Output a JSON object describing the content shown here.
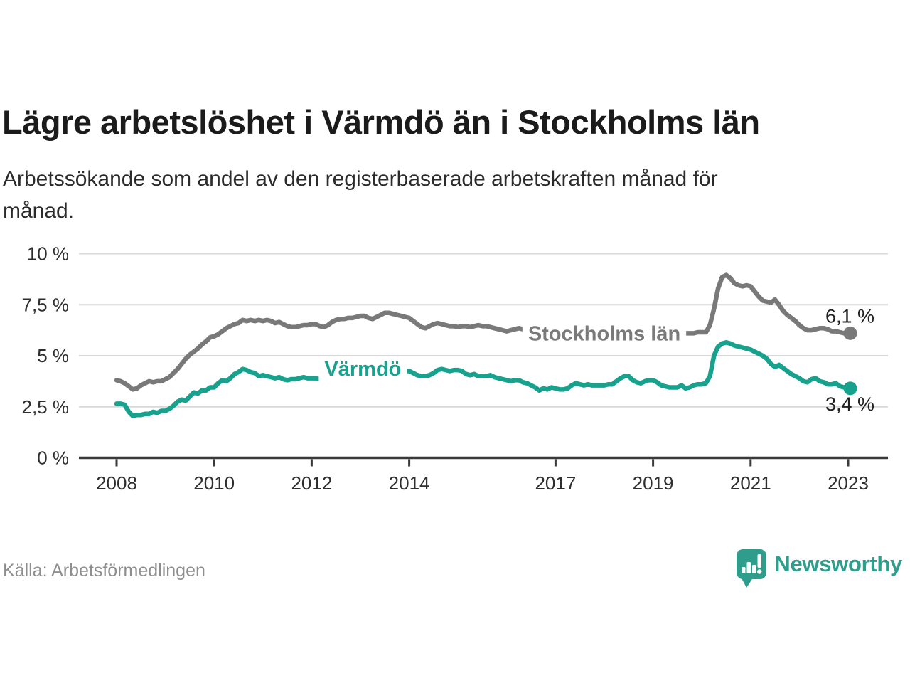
{
  "header": {
    "title": "Lägre arbetslöshet i Värmdö än i Stockholms län",
    "subtitle_line1": "Arbetssökande som andel av den registerbaserade arbetskraften månad för",
    "subtitle_line2": "månad."
  },
  "footer": {
    "source": "Källa: Arbetsförmedlingen",
    "brand": "Newsworthy",
    "brand_color": "#2f9d8b"
  },
  "chart_data": {
    "type": "line",
    "title": "Lägre arbetslöshet i Värmdö än i Stockholms län",
    "frequency": "monthly",
    "x_start": 2008,
    "x_end": 2023.083,
    "ylim": [
      0,
      10
    ],
    "unit": "%",
    "grid": "horizontal",
    "legend": "inline-labels",
    "grid_color": "#d8d8d8",
    "axis_color": "#3a3a3a",
    "text_color": "#2f2f2f",
    "end_label_color": "#212121",
    "x_tick_years": [
      2008,
      2010,
      2012,
      2014,
      2017,
      2019,
      2021,
      2023
    ],
    "x_tick_labels": [
      "2008",
      "2010",
      "2012",
      "2014",
      "2017",
      "2019",
      "2021",
      "2023"
    ],
    "y_ticks": [
      {
        "value": 0,
        "label": "0 %"
      },
      {
        "value": 2.5,
        "label": "2,5 %"
      },
      {
        "value": 5,
        "label": "5 %"
      },
      {
        "value": 7.5,
        "label": "7,5 %"
      },
      {
        "value": 10,
        "label": "10 %"
      }
    ],
    "series": [
      {
        "name": "Stockholms län",
        "color": "#797979",
        "end_label": "6,1 %",
        "last_value": 6.1,
        "label_pos": {
          "x": 2018.0,
          "y": 6.06
        },
        "end_label_dy": -15,
        "values": [
          3.8,
          3.75,
          3.65,
          3.5,
          3.35,
          3.4,
          3.55,
          3.65,
          3.75,
          3.7,
          3.75,
          3.75,
          3.85,
          3.95,
          4.15,
          4.35,
          4.6,
          4.85,
          5.05,
          5.2,
          5.35,
          5.55,
          5.7,
          5.9,
          5.95,
          6.05,
          6.2,
          6.35,
          6.45,
          6.55,
          6.6,
          6.75,
          6.7,
          6.75,
          6.7,
          6.75,
          6.7,
          6.75,
          6.7,
          6.6,
          6.65,
          6.55,
          6.45,
          6.4,
          6.4,
          6.45,
          6.5,
          6.5,
          6.55,
          6.55,
          6.45,
          6.4,
          6.5,
          6.65,
          6.75,
          6.8,
          6.8,
          6.85,
          6.85,
          6.9,
          6.95,
          6.95,
          6.85,
          6.8,
          6.9,
          7.0,
          7.1,
          7.1,
          7.05,
          7.0,
          6.95,
          6.9,
          6.85,
          6.7,
          6.55,
          6.4,
          6.35,
          6.45,
          6.55,
          6.6,
          6.55,
          6.5,
          6.45,
          6.45,
          6.4,
          6.45,
          6.45,
          6.4,
          6.45,
          6.5,
          6.45,
          6.45,
          6.4,
          6.35,
          6.3,
          6.25,
          6.2,
          6.25,
          6.3,
          6.35,
          6.3,
          6.3,
          6.25,
          6.2,
          6.2,
          6.15,
          6.1,
          6.1,
          6.1,
          6.1,
          6.05,
          6.0,
          6.0,
          6.0,
          6.0,
          5.95,
          5.95,
          5.95,
          5.95,
          5.95,
          5.95,
          5.9,
          5.9,
          5.85,
          5.85,
          5.85,
          5.9,
          5.9,
          5.95,
          5.95,
          6.0,
          6.0,
          6.0,
          6.0,
          6.05,
          6.05,
          6.05,
          6.05,
          6.1,
          6.1,
          6.1,
          6.1,
          6.1,
          6.15,
          6.15,
          6.15,
          6.5,
          7.3,
          8.3,
          8.85,
          8.95,
          8.8,
          8.55,
          8.45,
          8.4,
          8.45,
          8.4,
          8.15,
          7.9,
          7.7,
          7.65,
          7.6,
          7.75,
          7.5,
          7.2,
          7.0,
          6.85,
          6.7,
          6.5,
          6.35,
          6.25,
          6.25,
          6.3,
          6.35,
          6.35,
          6.3,
          6.2,
          6.2,
          6.15,
          6.1,
          6.1
        ]
      },
      {
        "name": "Värmdö",
        "color": "#18a28e",
        "end_label": "3,4 %",
        "last_value": 3.4,
        "label_pos": {
          "x": 2013.05,
          "y": 4.33
        },
        "end_label_dy": 31,
        "values": [
          2.65,
          2.65,
          2.6,
          2.25,
          2.05,
          2.1,
          2.1,
          2.15,
          2.15,
          2.25,
          2.2,
          2.3,
          2.3,
          2.4,
          2.55,
          2.75,
          2.85,
          2.8,
          3.0,
          3.2,
          3.15,
          3.3,
          3.3,
          3.45,
          3.45,
          3.65,
          3.8,
          3.75,
          3.9,
          4.1,
          4.2,
          4.35,
          4.3,
          4.2,
          4.15,
          4.0,
          4.05,
          4.0,
          3.95,
          3.9,
          3.95,
          3.85,
          3.8,
          3.85,
          3.85,
          3.9,
          3.95,
          3.9,
          3.9,
          3.9,
          3.85,
          3.9,
          3.95,
          4.0,
          4.0,
          4.05,
          4.05,
          4.1,
          4.1,
          4.1,
          4.1,
          4.15,
          4.15,
          4.2,
          4.2,
          4.25,
          4.25,
          4.3,
          4.25,
          4.25,
          4.25,
          4.25,
          4.25,
          4.15,
          4.05,
          4.0,
          4.0,
          4.05,
          4.15,
          4.3,
          4.35,
          4.3,
          4.25,
          4.3,
          4.3,
          4.25,
          4.1,
          4.05,
          4.1,
          4.0,
          4.0,
          4.0,
          4.05,
          3.95,
          3.9,
          3.85,
          3.8,
          3.75,
          3.8,
          3.8,
          3.7,
          3.65,
          3.55,
          3.45,
          3.3,
          3.4,
          3.35,
          3.45,
          3.4,
          3.35,
          3.35,
          3.4,
          3.55,
          3.65,
          3.6,
          3.55,
          3.6,
          3.55,
          3.55,
          3.55,
          3.55,
          3.6,
          3.6,
          3.75,
          3.9,
          4.0,
          4.0,
          3.8,
          3.7,
          3.65,
          3.75,
          3.8,
          3.8,
          3.7,
          3.55,
          3.5,
          3.45,
          3.45,
          3.45,
          3.55,
          3.4,
          3.45,
          3.55,
          3.6,
          3.6,
          3.65,
          4.0,
          5.0,
          5.45,
          5.6,
          5.65,
          5.6,
          5.5,
          5.45,
          5.4,
          5.35,
          5.3,
          5.2,
          5.1,
          5.0,
          4.85,
          4.6,
          4.45,
          4.55,
          4.4,
          4.25,
          4.1,
          4.0,
          3.9,
          3.75,
          3.7,
          3.85,
          3.9,
          3.75,
          3.7,
          3.6,
          3.6,
          3.65,
          3.5,
          3.45,
          3.4
        ]
      }
    ]
  }
}
